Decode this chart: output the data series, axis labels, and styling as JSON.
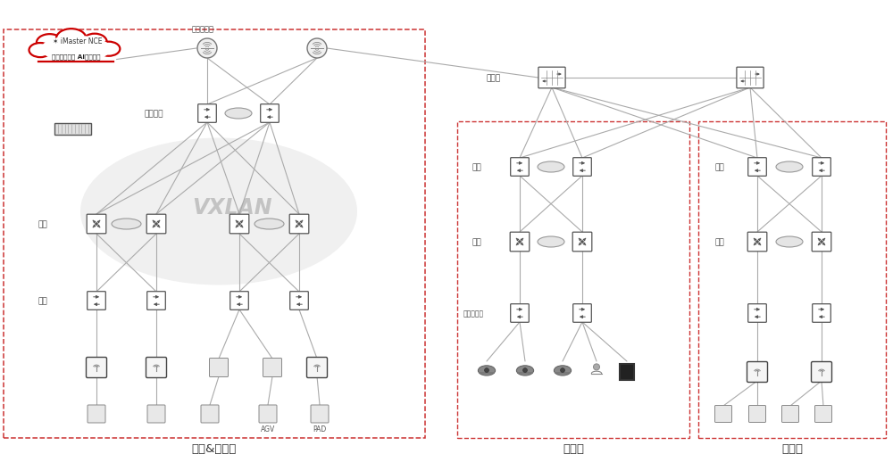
{
  "bg_color": "#ffffff",
  "section_labels": [
    "办公&生产网",
    "智能网",
    "宿舍网"
  ],
  "vxlan_label": "VXLAN",
  "cloud_text_line1": "iMaster NCE",
  "cloud_text_line2": "全网自动化｜ AI智能运维",
  "cloud_color": "#cc0000",
  "text_color": "#444444",
  "line_color": "#aaaaaa",
  "node_fill": "#ffffff",
  "node_border": "#666666",
  "red_dash": "#cc3333",
  "vxlan_fill": "#e8e8e8",
  "vxlan_text_color": "#bbbbbb"
}
